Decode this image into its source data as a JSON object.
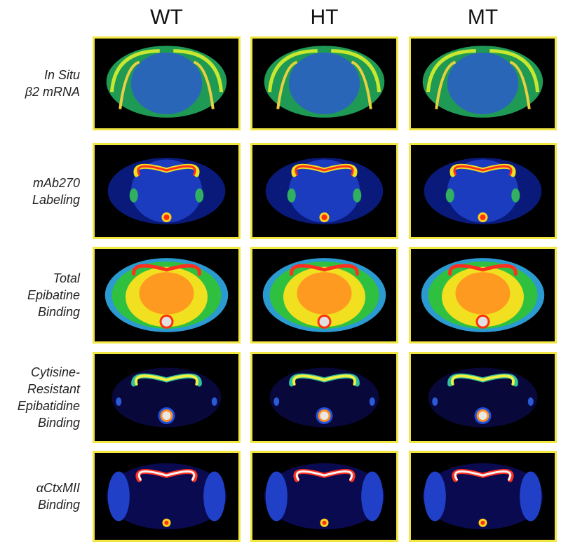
{
  "columns": [
    "WT",
    "HT",
    "MT"
  ],
  "rows": [
    {
      "label": [
        "In Situ",
        "β2 mRNA"
      ]
    },
    {
      "label": [
        "mAb270",
        "Labeling"
      ]
    },
    {
      "label": [
        "Total",
        "Epibatine",
        "Binding"
      ]
    },
    {
      "label": [
        "Cytisine-",
        "Resistant",
        "Epibatidine",
        "Binding"
      ]
    },
    {
      "label": [
        "αCtxMII",
        "Binding"
      ]
    }
  ]
}
